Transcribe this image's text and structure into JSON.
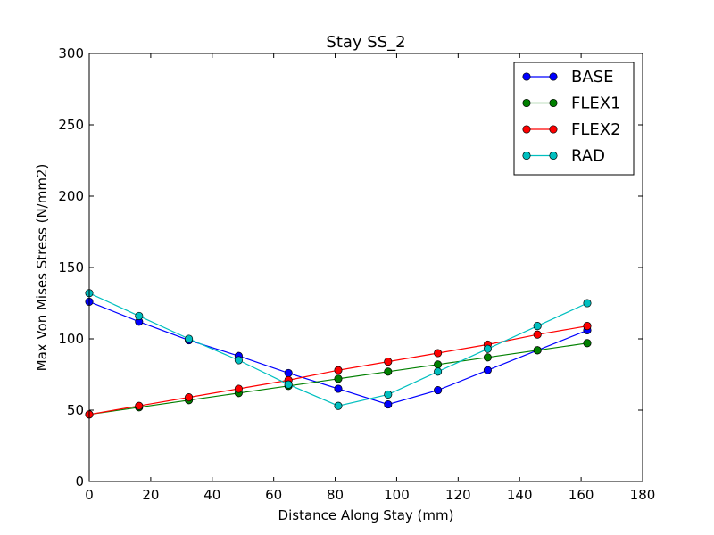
{
  "chart_data": {
    "type": "line",
    "title": "Stay SS_2",
    "xlabel": "Distance Along Stay (mm)",
    "ylabel": "Max Von Mises Stress (N/mm2)",
    "xlim": [
      0,
      180
    ],
    "ylim": [
      0,
      300
    ],
    "xticks": [
      "0",
      "20",
      "40",
      "60",
      "80",
      "100",
      "120",
      "140",
      "160",
      "180"
    ],
    "yticks": [
      "0",
      "50",
      "100",
      "150",
      "200",
      "250",
      "300"
    ],
    "grid": false,
    "legend_position": "top-right",
    "x": [
      0,
      16.2,
      32.4,
      48.6,
      64.8,
      81.0,
      97.2,
      113.4,
      129.6,
      145.8,
      162.0
    ],
    "series": [
      {
        "name": "BASE",
        "color": "#0000ff",
        "values": [
          126,
          112,
          99,
          88,
          76,
          65,
          54,
          64,
          78,
          92,
          106
        ]
      },
      {
        "name": "FLEX1",
        "color": "#008000",
        "values": [
          47,
          52,
          57,
          62,
          67,
          72,
          77,
          82,
          87,
          92,
          97
        ]
      },
      {
        "name": "FLEX2",
        "color": "#ff0000",
        "values": [
          47,
          53,
          59,
          65,
          71,
          78,
          84,
          90,
          96,
          103,
          109
        ]
      },
      {
        "name": "RAD",
        "color": "#00bfbf",
        "values": [
          132,
          116,
          100,
          85,
          68,
          53,
          61,
          77,
          93,
          109,
          125
        ]
      }
    ]
  }
}
